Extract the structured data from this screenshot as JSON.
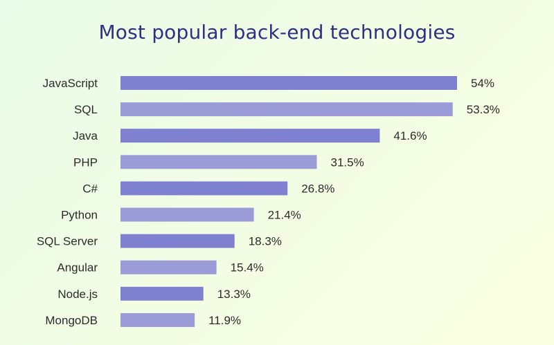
{
  "chart_data": {
    "type": "bar",
    "orientation": "horizontal",
    "title": "Most popular back-end technologies",
    "xlabel": "",
    "ylabel": "",
    "categories": [
      "JavaScript",
      "SQL",
      "Java",
      "PHP",
      "C#",
      "Python",
      "SQL Server",
      "Angular",
      "Node.js",
      "MongoDB"
    ],
    "values": [
      54,
      53.3,
      41.6,
      31.5,
      26.8,
      21.4,
      18.3,
      15.4,
      13.3,
      11.9
    ],
    "value_labels": [
      "54%",
      "53.3%",
      "41.6%",
      "31.5%",
      "26.8%",
      "21.4%",
      "18.3%",
      "15.4%",
      "13.3%",
      "11.9%"
    ],
    "xlim": [
      0,
      54
    ],
    "grid": false,
    "colors": {
      "bar_dark": "#8080d0",
      "bar_light": "#9b9bd8",
      "title": "#2e2f86"
    }
  }
}
